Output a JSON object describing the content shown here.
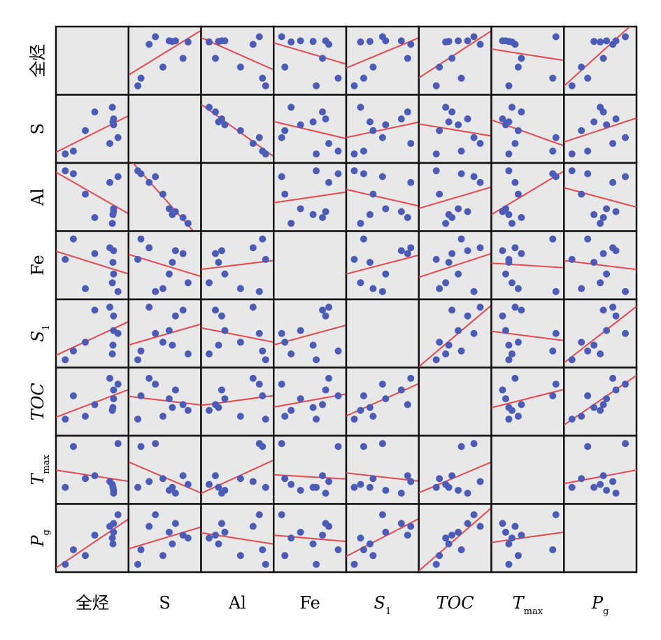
{
  "chart_data": {
    "type": "scatter_matrix",
    "lim": [
      0,
      100
    ],
    "point_color": "#4a5bb8",
    "line_color": "#e5484d",
    "panel_color": "#e8e8e8",
    "variables": [
      {
        "name": "全烃",
        "values": [
          7,
          20,
          39,
          54,
          78,
          91,
          84,
          83,
          84,
          82
        ]
      },
      {
        "name": "S",
        "values": [
          7,
          12,
          47,
          79,
          25,
          35,
          57,
          62,
          67,
          87
        ]
      },
      {
        "name": "Al",
        "values": [
          95,
          90,
          55,
          15,
          75,
          85,
          30,
          20,
          25,
          5
        ]
      },
      {
        "name": "Fe",
        "values": [
          60,
          95,
          10,
          70,
          80,
          5,
          35,
          55,
          75,
          20
        ]
      },
      {
        "name": "S",
        "sub": "1",
        "italic": true,
        "values": [
          5,
          20,
          35,
          90,
          95,
          50,
          55,
          30,
          80,
          15
        ]
      },
      {
        "name": "TOC",
        "italic": true,
        "values": [
          20,
          60,
          25,
          45,
          90,
          80,
          55,
          40,
          70,
          35
        ]
      },
      {
        "name": "T",
        "sub": "max",
        "italic": true,
        "values": [
          20,
          90,
          35,
          40,
          30,
          95,
          15,
          20,
          10,
          25
        ]
      },
      {
        "name": "P",
        "sub": "g",
        "italic": true,
        "values": [
          5,
          30,
          20,
          55,
          70,
          90,
          60,
          40,
          75,
          50
        ]
      }
    ]
  }
}
